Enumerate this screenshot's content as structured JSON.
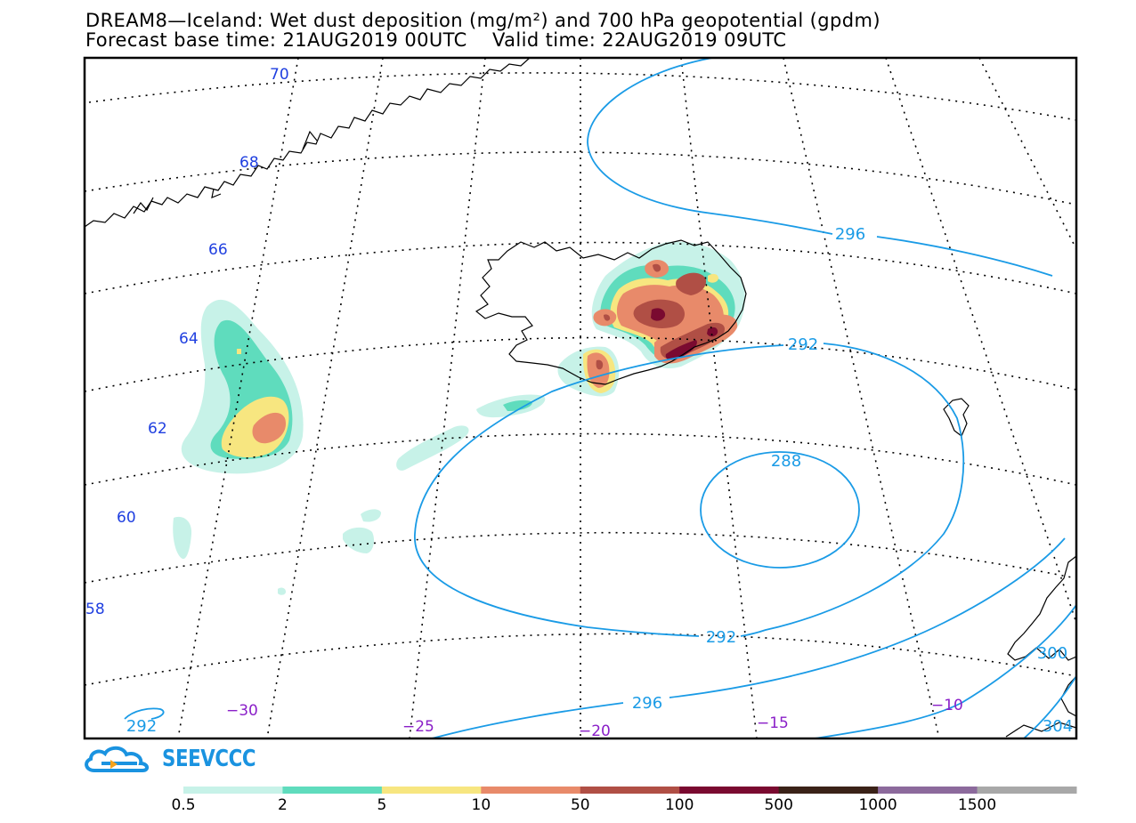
{
  "title": {
    "line1": "DREAM8—Iceland: Wet dust deposition (mg/m²) and 700 hPa geopotential (gpdm)",
    "line2": "Forecast base time: 21AUG2019 00UTC    Valid time: 22AUG2019 09UTC"
  },
  "map": {
    "region": "Iceland and North Atlantic",
    "latitude_labels": [
      "70",
      "68",
      "66",
      "64",
      "62",
      "60",
      "58"
    ],
    "longitude_labels": [
      "−30",
      "−25",
      "−20",
      "−15",
      "−10"
    ],
    "contour_labels": [
      "296",
      "292",
      "288",
      "292",
      "296",
      "292",
      "300",
      "304"
    ],
    "colors": {
      "contour_line": "#1a9be6",
      "lat_label": "#1f3fe0",
      "lon_label": "#8a1fc8",
      "coast": "#000000",
      "grid": "#000000"
    }
  },
  "logo": {
    "text": "SEEVCCC"
  },
  "legend": {
    "labels": [
      "0.5",
      "2",
      "5",
      "10",
      "50",
      "100",
      "500",
      "1000",
      "1500"
    ],
    "colors": [
      "#c7f2e8",
      "#5fdcbd",
      "#f7e680",
      "#e88a6a",
      "#b04f45",
      "#7a0a30",
      "#3a2218",
      "#8c6a9c",
      "#a8a8a8"
    ]
  }
}
